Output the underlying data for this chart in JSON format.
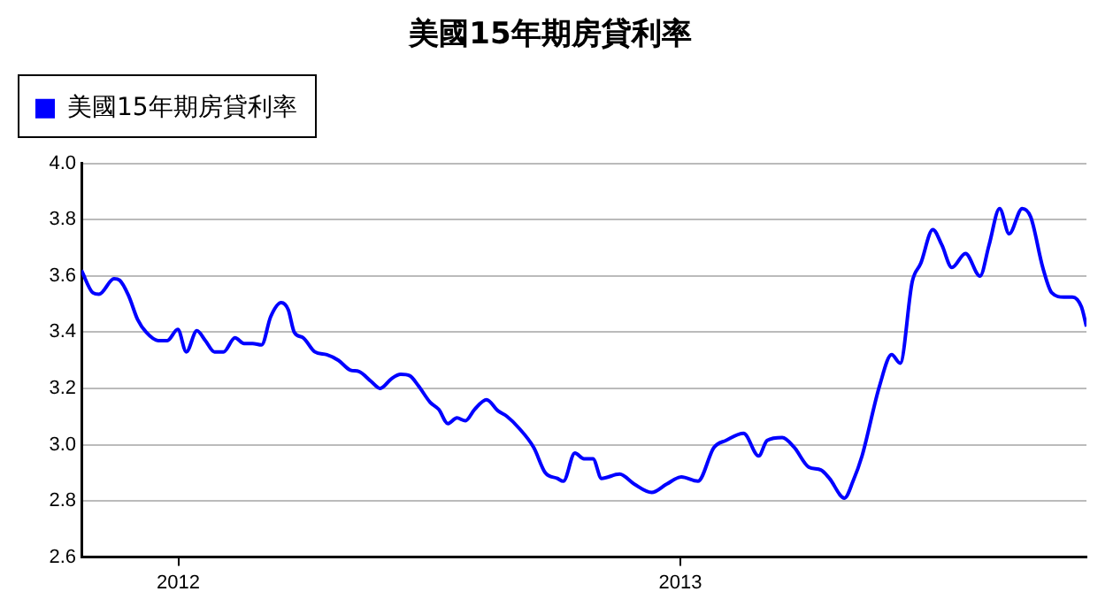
{
  "chart_data": {
    "type": "line",
    "title": "美國15年期房貸利率",
    "x": [
      2011.807,
      2011.83,
      2011.842,
      2011.872,
      2011.883,
      2011.901,
      2011.919,
      2011.936,
      2011.96,
      2011.978,
      2011.999,
      2012.016,
      2012.037,
      2012.054,
      2012.072,
      2012.09,
      2012.113,
      2012.131,
      2012.148,
      2012.166,
      2012.184,
      2012.205,
      2012.219,
      2012.231,
      2012.249,
      2012.272,
      2012.296,
      2012.319,
      2012.343,
      2012.36,
      2012.384,
      2012.402,
      2012.425,
      2012.443,
      2012.461,
      2012.478,
      2012.502,
      2012.519,
      2012.537,
      2012.555,
      2012.572,
      2012.59,
      2012.614,
      2012.637,
      2012.655,
      2012.678,
      2012.708,
      2012.731,
      2012.755,
      2012.767,
      2012.79,
      2012.808,
      2012.826,
      2012.843,
      2012.879,
      2012.908,
      2012.943,
      2012.973,
      2013.002,
      2013.035,
      2013.067,
      2013.091,
      2013.126,
      2013.156,
      2013.173,
      2013.203,
      2013.227,
      2013.256,
      2013.28,
      2013.297,
      2013.327,
      2013.344,
      2013.362,
      2013.397,
      2013.421,
      2013.438,
      2013.462,
      2013.479,
      2013.503,
      2013.521,
      2013.541,
      2013.568,
      2013.597,
      2013.615,
      2013.636,
      2013.655,
      2013.681,
      2013.698,
      2013.722,
      2013.74,
      2013.764,
      2013.781,
      2013.799,
      2013.809
    ],
    "series": [
      {
        "name": "美國15年期房貸利率",
        "color": "#0000ff",
        "values": [
          3.62,
          3.54,
          3.535,
          3.59,
          3.585,
          3.53,
          3.445,
          3.4,
          3.37,
          3.37,
          3.41,
          3.33,
          3.405,
          3.37,
          3.33,
          3.33,
          3.38,
          3.36,
          3.36,
          3.355,
          3.455,
          3.505,
          3.48,
          3.4,
          3.38,
          3.33,
          3.32,
          3.3,
          3.265,
          3.26,
          3.225,
          3.2,
          3.235,
          3.25,
          3.245,
          3.21,
          3.15,
          3.125,
          3.075,
          3.095,
          3.085,
          3.125,
          3.16,
          3.12,
          3.1,
          3.06,
          2.99,
          2.9,
          2.88,
          2.87,
          2.97,
          2.95,
          2.95,
          2.88,
          2.895,
          2.86,
          2.83,
          2.86,
          2.885,
          2.87,
          2.99,
          3.015,
          3.04,
          2.96,
          3.015,
          3.025,
          2.99,
          2.92,
          2.91,
          2.88,
          2.81,
          2.87,
          2.96,
          3.21,
          3.32,
          3.29,
          3.58,
          3.645,
          3.765,
          3.71,
          3.63,
          3.68,
          3.6,
          3.71,
          3.84,
          3.75,
          3.84,
          3.81,
          3.63,
          3.54,
          3.525,
          3.525,
          3.49,
          3.42
        ]
      }
    ],
    "xlim": [
      2011.807,
      2013.809
    ],
    "xticks": [
      2012,
      2013
    ],
    "ylim": [
      2.6,
      4.0
    ],
    "yticks": [
      {
        "value": 2.6,
        "label": "2.6"
      },
      {
        "value": 2.8,
        "label": "2.8"
      },
      {
        "value": 3.0,
        "label": "3.0"
      },
      {
        "value": 3.2,
        "label": "3.2"
      },
      {
        "value": 3.4,
        "label": "3.4"
      },
      {
        "value": 3.6,
        "label": "3.6"
      },
      {
        "value": 3.8,
        "label": "3.8"
      },
      {
        "value": 4.0,
        "label": "4.0"
      }
    ],
    "grid": "y",
    "legend": "top left",
    "marker": "none",
    "line_style": "solid"
  }
}
